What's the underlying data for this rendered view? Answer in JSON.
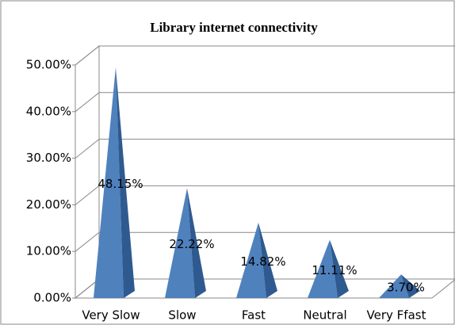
{
  "chart_data": {
    "type": "pyramid",
    "title": "Library internet connectivity",
    "categories": [
      "Very Slow",
      "Slow",
      "Fast",
      "Neutral",
      "Very Ffast"
    ],
    "values": [
      48.15,
      22.22,
      14.82,
      11.11,
      3.7
    ],
    "value_labels": [
      "48.15%",
      "22.22%",
      "14.82%",
      "11.11%",
      "3.70%"
    ],
    "color": "#4f81bd",
    "ylim": [
      0,
      50
    ],
    "yticks": [
      {
        "value": 0,
        "label": "0.00%"
      },
      {
        "value": 10,
        "label": "10.00%"
      },
      {
        "value": 20,
        "label": "20.00%"
      },
      {
        "value": 30,
        "label": "30.00%"
      },
      {
        "value": 40,
        "label": "40.00%"
      },
      {
        "value": 50,
        "label": "50.00%"
      }
    ],
    "grid": true
  }
}
